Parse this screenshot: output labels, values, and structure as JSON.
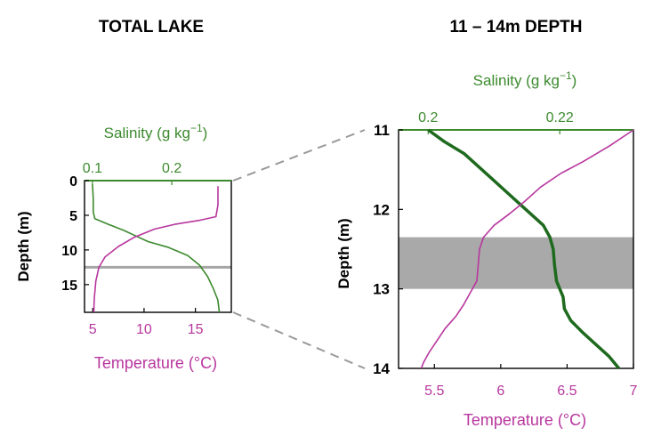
{
  "chart_data": [
    {
      "type": "line",
      "title": "TOTAL LAKE",
      "ylabel": "Depth (m)",
      "ylim": [
        0,
        19
      ],
      "y_inverted": true,
      "yticks": [
        0,
        5,
        10,
        15
      ],
      "ytick_labels": [
        "0",
        "5",
        "10",
        "15"
      ],
      "top_axis": {
        "label_main": "Salinity (g kg",
        "label_exp": "−1",
        "label_close": ")",
        "lim": [
          0.09,
          0.275
        ],
        "ticks": [
          0.1,
          0.2
        ],
        "tick_labels": [
          "0.1",
          "0.2"
        ],
        "color": "#3c8a2e"
      },
      "bottom_axis": {
        "label": "Temperature (°C)",
        "lim": [
          4.2,
          18.5
        ],
        "ticks": [
          5,
          10,
          15
        ],
        "tick_labels": [
          "5",
          "10",
          "15"
        ],
        "color": "#b8369e"
      },
      "grey_line_depth": 12.5,
      "series": [
        {
          "axis": "top",
          "color": "#3c8a2e",
          "points": [
            [
              0.1,
              0.5
            ],
            [
              0.101,
              2.5
            ],
            [
              0.101,
              4.5
            ],
            [
              0.103,
              5.5
            ],
            [
              0.12,
              6.3
            ],
            [
              0.14,
              7.2
            ],
            [
              0.155,
              8.0
            ],
            [
              0.17,
              8.8
            ],
            [
              0.195,
              9.6
            ],
            [
              0.22,
              10.8
            ],
            [
              0.235,
              12.2
            ],
            [
              0.245,
              13.8
            ],
            [
              0.252,
              15.5
            ],
            [
              0.258,
              17.2
            ],
            [
              0.26,
              19.0
            ]
          ]
        },
        {
          "axis": "bottom",
          "color": "#b8369e",
          "points": [
            [
              17.2,
              0.8
            ],
            [
              17.2,
              3.5
            ],
            [
              17.0,
              5.2
            ],
            [
              15.5,
              5.7
            ],
            [
              13.0,
              6.3
            ],
            [
              11.0,
              7.0
            ],
            [
              9.0,
              8.2
            ],
            [
              7.5,
              9.5
            ],
            [
              6.2,
              11.0
            ],
            [
              5.6,
              12.5
            ],
            [
              5.3,
              14.5
            ],
            [
              5.15,
              17.0
            ],
            [
              5.1,
              19.0
            ]
          ]
        }
      ]
    },
    {
      "type": "line",
      "title": "11 – 14m DEPTH",
      "ylabel": "Depth (m)",
      "ylim": [
        11,
        14
      ],
      "y_inverted": true,
      "yticks": [
        11,
        12,
        13,
        14
      ],
      "ytick_labels": [
        "11",
        "12",
        "13",
        "14"
      ],
      "top_axis": {
        "label_main": "Salinity (g kg",
        "label_exp": "−1",
        "label_close": ")",
        "lim": [
          0.1955,
          0.2312
        ],
        "ticks": [
          0.2,
          0.22
        ],
        "tick_labels": [
          "0.2",
          "0.22"
        ],
        "color": "#3c8a2e"
      },
      "bottom_axis": {
        "label": "Temperature (°C)",
        "lim": [
          5.23,
          7.0
        ],
        "ticks": [
          5.5,
          6,
          6.5,
          7
        ],
        "tick_labels": [
          "5.5",
          "6",
          "6.5",
          "7"
        ],
        "color": "#b8369e"
      },
      "grey_band": [
        12.35,
        13.0
      ],
      "series": [
        {
          "axis": "top",
          "color": "#1e6a1e",
          "points": [
            [
              0.2,
              11.0
            ],
            [
              0.2025,
              11.15
            ],
            [
              0.2055,
              11.3
            ],
            [
              0.2075,
              11.45
            ],
            [
              0.2095,
              11.6
            ],
            [
              0.2115,
              11.75
            ],
            [
              0.2135,
              11.9
            ],
            [
              0.2155,
              12.05
            ],
            [
              0.2175,
              12.2
            ],
            [
              0.2185,
              12.35
            ],
            [
              0.219,
              12.5
            ],
            [
              0.2192,
              12.7
            ],
            [
              0.2195,
              12.9
            ],
            [
              0.22,
              13.0
            ],
            [
              0.2205,
              13.1
            ],
            [
              0.2207,
              13.25
            ],
            [
              0.2217,
              13.4
            ],
            [
              0.2235,
              13.55
            ],
            [
              0.2255,
              13.7
            ],
            [
              0.2275,
              13.85
            ],
            [
              0.229,
              14.0
            ]
          ]
        },
        {
          "axis": "bottom",
          "color": "#b8369e",
          "points": [
            [
              7.0,
              11.0
            ],
            [
              6.82,
              11.2
            ],
            [
              6.62,
              11.4
            ],
            [
              6.45,
              11.55
            ],
            [
              6.3,
              11.72
            ],
            [
              6.18,
              11.9
            ],
            [
              6.07,
              12.05
            ],
            [
              5.95,
              12.2
            ],
            [
              5.87,
              12.35
            ],
            [
              5.84,
              12.5
            ],
            [
              5.83,
              12.7
            ],
            [
              5.82,
              12.9
            ],
            [
              5.77,
              13.05
            ],
            [
              5.72,
              13.2
            ],
            [
              5.66,
              13.35
            ],
            [
              5.58,
              13.5
            ],
            [
              5.52,
              13.65
            ],
            [
              5.46,
              13.8
            ],
            [
              5.42,
              13.92
            ],
            [
              5.4,
              14.0
            ]
          ]
        }
      ]
    }
  ]
}
